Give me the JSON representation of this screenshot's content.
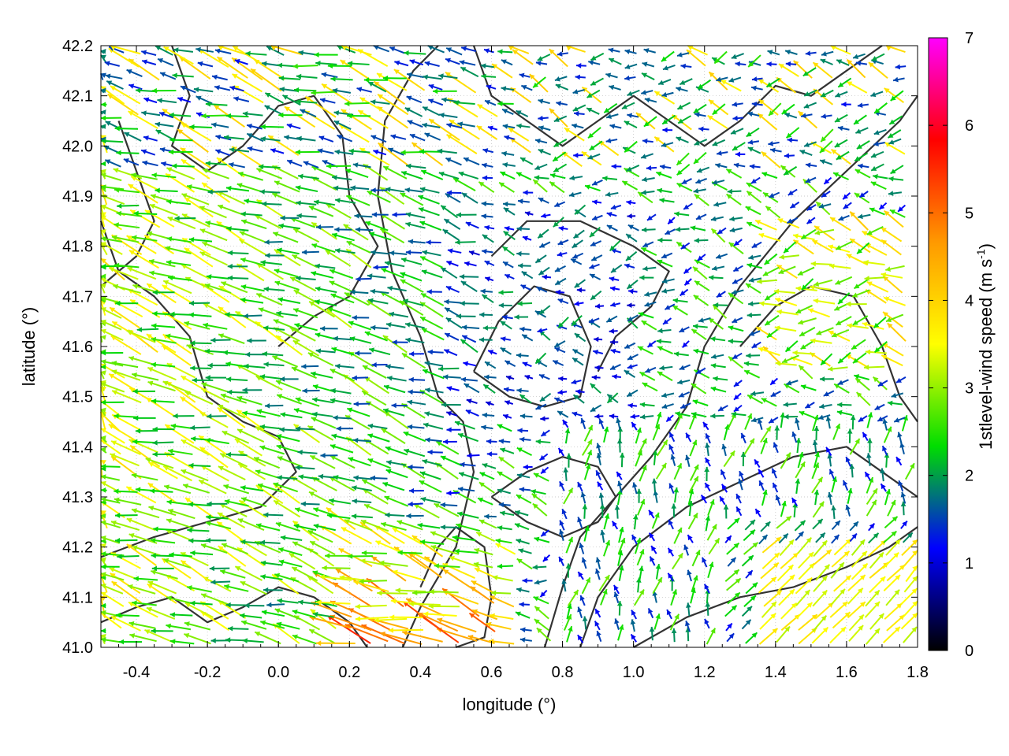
{
  "chart_data": {
    "type": "vector-field",
    "xlabel": "longitude (°)",
    "ylabel": "latitude (°)",
    "xlim": [
      -0.5,
      1.8
    ],
    "ylim": [
      41.0,
      42.2
    ],
    "x_ticks": [
      "-0.4",
      "-0.2",
      "0.0",
      "0.2",
      "0.4",
      "0.6",
      "0.8",
      "1.0",
      "1.2",
      "1.4",
      "1.6",
      "1.8"
    ],
    "x_tick_values": [
      -0.4,
      -0.2,
      0.0,
      0.2,
      0.4,
      0.6,
      0.8,
      1.0,
      1.2,
      1.4,
      1.6,
      1.8
    ],
    "y_ticks": [
      "41.0",
      "41.1",
      "41.2",
      "41.3",
      "41.4",
      "41.5",
      "41.6",
      "41.7",
      "41.8",
      "41.9",
      "42.0",
      "42.1",
      "42.2"
    ],
    "y_tick_values": [
      41.0,
      41.1,
      41.2,
      41.3,
      41.4,
      41.5,
      41.6,
      41.7,
      41.8,
      41.9,
      42.0,
      42.1,
      42.2
    ],
    "grid": true,
    "colorbar": {
      "label": "1stlevel-wind speed (m s",
      "label_superscript": "-1",
      "label_close": ")",
      "range": [
        0,
        7
      ],
      "ticks": [
        "0",
        "1",
        "2",
        "3",
        "4",
        "5",
        "6",
        "7"
      ],
      "tick_values": [
        0,
        1,
        2,
        3,
        4,
        5,
        6,
        7
      ],
      "colors": [
        "#000000",
        "#0000ff",
        "#00dd00",
        "#ffff00",
        "#ff9900",
        "#ff0000",
        "#ff00ff"
      ]
    },
    "contour_color": "#333333",
    "contours": [
      [
        [
          0.35,
          41.0
        ],
        [
          0.4,
          41.08
        ],
        [
          0.5,
          41.2
        ],
        [
          0.55,
          41.35
        ],
        [
          0.52,
          41.45
        ],
        [
          0.45,
          41.5
        ],
        [
          0.4,
          41.62
        ],
        [
          0.32,
          41.75
        ],
        [
          0.28,
          41.9
        ],
        [
          0.3,
          42.05
        ],
        [
          0.38,
          42.15
        ],
        [
          0.45,
          42.2
        ]
      ],
      [
        [
          0.75,
          41.0
        ],
        [
          0.8,
          41.12
        ],
        [
          0.85,
          41.22
        ],
        [
          0.95,
          41.3
        ],
        [
          1.05,
          41.38
        ],
        [
          1.15,
          41.48
        ],
        [
          1.2,
          41.6
        ],
        [
          1.3,
          41.72
        ],
        [
          1.45,
          41.85
        ],
        [
          1.6,
          41.95
        ],
        [
          1.75,
          42.05
        ],
        [
          1.8,
          42.1
        ]
      ],
      [
        [
          0.85,
          41.0
        ],
        [
          0.9,
          41.1
        ],
        [
          1.0,
          41.2
        ],
        [
          1.15,
          41.28
        ],
        [
          1.3,
          41.33
        ],
        [
          1.45,
          41.38
        ],
        [
          1.6,
          41.4
        ],
        [
          1.7,
          41.35
        ],
        [
          1.8,
          41.3
        ]
      ],
      [
        [
          1.0,
          41.0
        ],
        [
          1.15,
          41.06
        ],
        [
          1.3,
          41.1
        ],
        [
          1.45,
          41.12
        ],
        [
          1.6,
          41.16
        ],
        [
          1.72,
          41.2
        ],
        [
          1.8,
          41.24
        ]
      ],
      [
        [
          -0.5,
          41.85
        ],
        [
          -0.45,
          41.75
        ],
        [
          -0.35,
          41.7
        ],
        [
          -0.25,
          41.62
        ],
        [
          -0.2,
          41.5
        ],
        [
          -0.1,
          41.45
        ],
        [
          0.0,
          41.42
        ],
        [
          0.05,
          41.35
        ],
        [
          -0.05,
          41.28
        ],
        [
          -0.2,
          41.25
        ],
        [
          -0.35,
          41.22
        ],
        [
          -0.5,
          41.18
        ]
      ],
      [
        [
          -0.3,
          42.2
        ],
        [
          -0.25,
          42.1
        ],
        [
          -0.3,
          42.0
        ],
        [
          -0.2,
          41.95
        ],
        [
          -0.1,
          42.0
        ],
        [
          0.0,
          42.08
        ],
        [
          0.1,
          42.1
        ],
        [
          0.18,
          42.02
        ],
        [
          0.2,
          41.9
        ],
        [
          0.28,
          41.8
        ],
        [
          0.2,
          41.7
        ],
        [
          0.1,
          41.66
        ],
        [
          0.0,
          41.6
        ]
      ],
      [
        [
          0.55,
          41.55
        ],
        [
          0.62,
          41.65
        ],
        [
          0.72,
          41.72
        ],
        [
          0.82,
          41.7
        ],
        [
          0.88,
          41.6
        ],
        [
          0.85,
          41.5
        ],
        [
          0.75,
          41.48
        ],
        [
          0.65,
          41.5
        ],
        [
          0.55,
          41.55
        ]
      ],
      [
        [
          0.6,
          41.78
        ],
        [
          0.7,
          41.85
        ],
        [
          0.85,
          41.85
        ],
        [
          1.0,
          41.8
        ],
        [
          1.1,
          41.75
        ],
        [
          1.05,
          41.68
        ],
        [
          0.95,
          41.62
        ],
        [
          0.9,
          41.55
        ]
      ],
      [
        [
          0.55,
          42.2
        ],
        [
          0.6,
          42.1
        ],
        [
          0.7,
          42.05
        ],
        [
          0.8,
          42.0
        ],
        [
          0.9,
          42.05
        ],
        [
          1.0,
          42.1
        ],
        [
          1.1,
          42.05
        ],
        [
          1.2,
          42.0
        ],
        [
          1.3,
          42.05
        ],
        [
          1.4,
          42.12
        ],
        [
          1.5,
          42.1
        ],
        [
          1.6,
          42.15
        ],
        [
          1.7,
          42.2
        ]
      ],
      [
        [
          0.6,
          41.3
        ],
        [
          0.7,
          41.35
        ],
        [
          0.8,
          41.38
        ],
        [
          0.9,
          41.36
        ],
        [
          0.95,
          41.3
        ],
        [
          0.9,
          41.25
        ],
        [
          0.8,
          41.22
        ],
        [
          0.7,
          41.25
        ],
        [
          0.6,
          41.3
        ]
      ],
      [
        [
          -0.5,
          41.05
        ],
        [
          -0.4,
          41.08
        ],
        [
          -0.3,
          41.1
        ],
        [
          -0.2,
          41.05
        ],
        [
          -0.1,
          41.08
        ],
        [
          0.0,
          41.12
        ],
        [
          0.1,
          41.1
        ],
        [
          0.2,
          41.05
        ],
        [
          0.25,
          41.0
        ]
      ],
      [
        [
          1.3,
          41.6
        ],
        [
          1.4,
          41.68
        ],
        [
          1.5,
          41.72
        ],
        [
          1.62,
          41.7
        ],
        [
          1.7,
          41.6
        ],
        [
          1.75,
          41.5
        ],
        [
          1.8,
          41.45
        ]
      ],
      [
        [
          -0.45,
          42.05
        ],
        [
          -0.4,
          41.95
        ],
        [
          -0.35,
          41.85
        ],
        [
          -0.4,
          41.78
        ],
        [
          -0.5,
          41.72
        ]
      ],
      [
        [
          0.4,
          41.12
        ],
        [
          0.45,
          41.2
        ],
        [
          0.5,
          41.24
        ],
        [
          0.58,
          41.2
        ],
        [
          0.6,
          41.1
        ],
        [
          0.58,
          41.02
        ],
        [
          0.5,
          41.0
        ]
      ]
    ]
  }
}
